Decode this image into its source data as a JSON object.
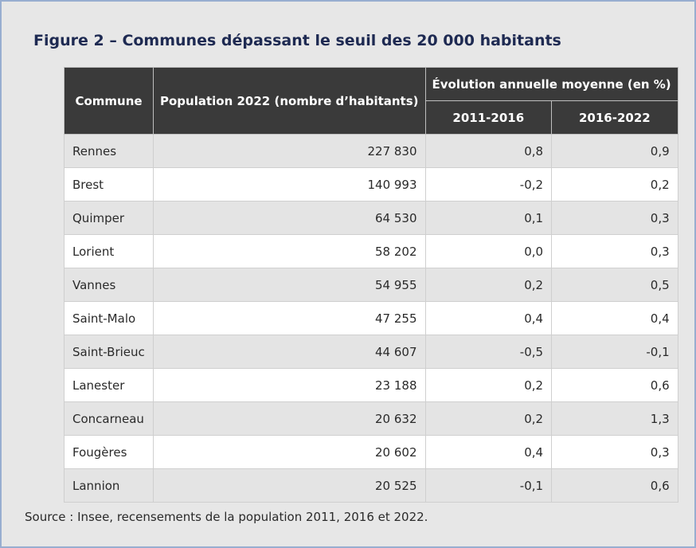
{
  "figure": {
    "title": "Figure 2 – Communes dépassant le seuil des 20 000 habitants"
  },
  "table": {
    "headers": {
      "commune": "Commune",
      "population": "Population 2022 (nombre d’habitants)",
      "evolution": "Évolution annuelle moyenne (en %)",
      "period1": "2011-2016",
      "period2": "2016-2022"
    },
    "rows": [
      {
        "commune": "Rennes",
        "population": "227 830",
        "evo_2011_2016": "0,8",
        "evo_2016_2022": "0,9"
      },
      {
        "commune": "Brest",
        "population": "140 993",
        "evo_2011_2016": "-0,2",
        "evo_2016_2022": "0,2"
      },
      {
        "commune": "Quimper",
        "population": "64 530",
        "evo_2011_2016": "0,1",
        "evo_2016_2022": "0,3"
      },
      {
        "commune": "Lorient",
        "population": "58 202",
        "evo_2011_2016": "0,0",
        "evo_2016_2022": "0,3"
      },
      {
        "commune": "Vannes",
        "population": "54 955",
        "evo_2011_2016": "0,2",
        "evo_2016_2022": "0,5"
      },
      {
        "commune": "Saint-Malo",
        "population": "47 255",
        "evo_2011_2016": "0,4",
        "evo_2016_2022": "0,4"
      },
      {
        "commune": "Saint-Brieuc",
        "population": "44 607",
        "evo_2011_2016": "-0,5",
        "evo_2016_2022": "-0,1"
      },
      {
        "commune": "Lanester",
        "population": "23 188",
        "evo_2011_2016": "0,2",
        "evo_2016_2022": "0,6"
      },
      {
        "commune": "Concarneau",
        "population": "20 632",
        "evo_2011_2016": "0,2",
        "evo_2016_2022": "1,3"
      },
      {
        "commune": "Fougères",
        "population": "20 602",
        "evo_2011_2016": "0,4",
        "evo_2016_2022": "0,3"
      },
      {
        "commune": "Lannion",
        "population": "20 525",
        "evo_2011_2016": "-0,1",
        "evo_2016_2022": "0,6"
      }
    ]
  },
  "source": "Source : Insee, recensements de la population 2011, 2016 et 2022.",
  "colors": {
    "title": "#1e2a52",
    "header_bg": "#3a3a3a",
    "row_alt": "#e4e4e4",
    "frame_border": "#98aed0"
  }
}
